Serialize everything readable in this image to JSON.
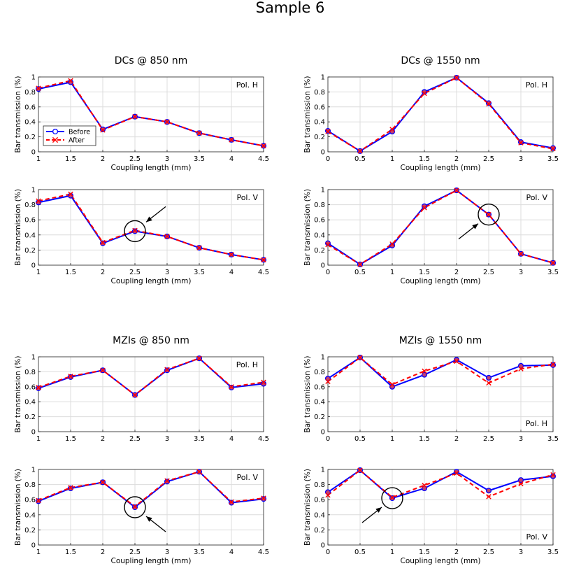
{
  "figure_title": "Sample 6",
  "legend": {
    "before": "Before",
    "after": "After"
  },
  "colors": {
    "before": "#0000ff",
    "after": "#ff0000",
    "marker_fill": "#c04070"
  },
  "chart_data": [
    {
      "type": "line",
      "title": "DCs @ 850 nm",
      "pol": "Pol. H",
      "pol_position": "top-right",
      "xlabel": "Coupling length (mm)",
      "ylabel": "Bar transmission (%)",
      "x": [
        1,
        1.5,
        2,
        2.5,
        3,
        3.5,
        4,
        4.5
      ],
      "xticks": [
        "1",
        "1.5",
        "2",
        "2.5",
        "3",
        "3.5",
        "4",
        "4.5"
      ],
      "yticks": [
        "0",
        "0.2",
        "0.4",
        "0.6",
        "0.8",
        "1"
      ],
      "xlim": [
        1,
        4.5
      ],
      "ylim": [
        0,
        1
      ],
      "legend": true,
      "legend_position": "middle-left",
      "series": [
        {
          "name": "Before",
          "values": [
            0.84,
            0.93,
            0.3,
            0.47,
            0.4,
            0.25,
            0.16,
            0.08
          ]
        },
        {
          "name": "After",
          "values": [
            0.85,
            0.95,
            0.29,
            0.47,
            0.4,
            0.25,
            0.16,
            0.08
          ]
        }
      ]
    },
    {
      "type": "line",
      "title": "DCs @ 1550 nm",
      "pol": "Pol. H",
      "pol_position": "top-right",
      "xlabel": "Coupling length (mm)",
      "ylabel": "Bar transmission (%)",
      "x": [
        0,
        0.5,
        1,
        1.5,
        2,
        2.5,
        3,
        3.5
      ],
      "xticks": [
        "0",
        "0.5",
        "1",
        "1.5",
        "2",
        "2.5",
        "3",
        "3.5"
      ],
      "yticks": [
        "0",
        "0.2",
        "0.4",
        "0.6",
        "0.8",
        "1"
      ],
      "xlim": [
        0,
        3.5
      ],
      "ylim": [
        0,
        1
      ],
      "series": [
        {
          "name": "Before",
          "values": [
            0.28,
            0.01,
            0.27,
            0.8,
            0.99,
            0.65,
            0.13,
            0.05
          ]
        },
        {
          "name": "After",
          "values": [
            0.27,
            0.01,
            0.3,
            0.78,
            0.99,
            0.64,
            0.12,
            0.04
          ]
        }
      ]
    },
    {
      "type": "line",
      "title": "",
      "pol": "Pol. V",
      "pol_position": "top-right",
      "xlabel": "Coupling length (mm)",
      "ylabel": "Bar transmission (%)",
      "x": [
        1,
        1.5,
        2,
        2.5,
        3,
        3.5,
        4,
        4.5
      ],
      "xticks": [
        "1",
        "1.5",
        "2",
        "2.5",
        "3",
        "3.5",
        "4",
        "4.5"
      ],
      "yticks": [
        "0",
        "0.2",
        "0.4",
        "0.6",
        "0.8",
        "1"
      ],
      "xlim": [
        1,
        4.5
      ],
      "ylim": [
        0,
        1
      ],
      "highlight_x": 2.5,
      "arrow_from": "top-right",
      "series": [
        {
          "name": "Before",
          "values": [
            0.83,
            0.92,
            0.29,
            0.45,
            0.38,
            0.23,
            0.14,
            0.07
          ]
        },
        {
          "name": "After",
          "values": [
            0.85,
            0.94,
            0.3,
            0.46,
            0.38,
            0.23,
            0.14,
            0.07
          ]
        }
      ]
    },
    {
      "type": "line",
      "title": "",
      "pol": "Pol. V",
      "pol_position": "top-right",
      "xlabel": "Coupling length (mm)",
      "ylabel": "Bar transmission (%)",
      "x": [
        0,
        0.5,
        1,
        1.5,
        2,
        2.5,
        3,
        3.5
      ],
      "xticks": [
        "0",
        "0.5",
        "1",
        "1.5",
        "2",
        "2.5",
        "3",
        "3.5"
      ],
      "yticks": [
        "0",
        "0.2",
        "0.4",
        "0.6",
        "0.8",
        "1"
      ],
      "xlim": [
        0,
        3.5
      ],
      "ylim": [
        0,
        1
      ],
      "highlight_x": 2.5,
      "arrow_from": "bottom-left",
      "series": [
        {
          "name": "Before",
          "values": [
            0.29,
            0.01,
            0.26,
            0.78,
            0.99,
            0.67,
            0.15,
            0.03
          ]
        },
        {
          "name": "After",
          "values": [
            0.27,
            0.01,
            0.28,
            0.76,
            0.99,
            0.67,
            0.15,
            0.03
          ]
        }
      ]
    },
    {
      "type": "line",
      "title": "MZIs @ 850 nm",
      "pol": "Pol. H",
      "pol_position": "top-right",
      "xlabel": "",
      "ylabel": "Bar transmission (%)",
      "x": [
        1,
        1.5,
        2,
        2.5,
        3,
        3.5,
        4,
        4.5
      ],
      "xticks": [
        "1",
        "1.5",
        "2",
        "2.5",
        "3",
        "3.5",
        "4",
        "4.5"
      ],
      "yticks": [
        "0",
        "0.2",
        "0.4",
        "0.6",
        "0.8",
        "1"
      ],
      "xlim": [
        1,
        4.5
      ],
      "ylim": [
        0,
        1
      ],
      "series": [
        {
          "name": "Before",
          "values": [
            0.58,
            0.73,
            0.82,
            0.49,
            0.82,
            0.98,
            0.59,
            0.64
          ]
        },
        {
          "name": "After",
          "values": [
            0.59,
            0.74,
            0.82,
            0.49,
            0.83,
            0.98,
            0.6,
            0.66
          ]
        }
      ]
    },
    {
      "type": "line",
      "title": "MZIs @ 1550 nm",
      "pol": "Pol. H",
      "pol_position": "bottom-right",
      "xlabel": "",
      "ylabel": "Bar transmission (%)",
      "x": [
        0,
        0.5,
        1,
        1.5,
        2,
        2.5,
        3,
        3.5
      ],
      "xticks": [
        "0",
        "0.5",
        "1",
        "1.5",
        "2",
        "2.5",
        "3",
        "3.5"
      ],
      "yticks": [
        "0",
        "0.2",
        "0.4",
        "0.6",
        "0.8",
        "1"
      ],
      "xlim": [
        0,
        3.5
      ],
      "ylim": [
        0,
        1
      ],
      "series": [
        {
          "name": "Before",
          "values": [
            0.71,
            0.99,
            0.6,
            0.76,
            0.96,
            0.72,
            0.88,
            0.89
          ]
        },
        {
          "name": "After",
          "values": [
            0.67,
            0.99,
            0.63,
            0.81,
            0.94,
            0.65,
            0.84,
            0.9
          ]
        }
      ]
    },
    {
      "type": "line",
      "title": "",
      "pol": "Pol. V",
      "pol_position": "top-right",
      "xlabel": "Coupling length (mm)",
      "ylabel": "Bar transmission (%)",
      "x": [
        1,
        1.5,
        2,
        2.5,
        3,
        3.5,
        4,
        4.5
      ],
      "xticks": [
        "1",
        "1.5",
        "2",
        "2.5",
        "3",
        "3.5",
        "4",
        "4.5"
      ],
      "yticks": [
        "0",
        "0.2",
        "0.4",
        "0.6",
        "0.8",
        "1"
      ],
      "xlim": [
        1,
        4.5
      ],
      "ylim": [
        0,
        1
      ],
      "highlight_x": 2.5,
      "arrow_from": "bottom-right",
      "series": [
        {
          "name": "Before",
          "values": [
            0.58,
            0.75,
            0.83,
            0.5,
            0.84,
            0.97,
            0.56,
            0.61
          ]
        },
        {
          "name": "After",
          "values": [
            0.59,
            0.76,
            0.83,
            0.51,
            0.85,
            0.97,
            0.57,
            0.62
          ]
        }
      ]
    },
    {
      "type": "line",
      "title": "",
      "pol": "Pol. V",
      "pol_position": "bottom-right",
      "xlabel": "Coupling length (mm)",
      "ylabel": "Bar transmission (%)",
      "x": [
        0,
        0.5,
        1,
        1.5,
        2,
        2.5,
        3,
        3.5
      ],
      "xticks": [
        "0",
        "0.5",
        "1",
        "1.5",
        "2",
        "2.5",
        "3",
        "3.5"
      ],
      "yticks": [
        "0",
        "0.2",
        "0.4",
        "0.6",
        "0.8",
        "1"
      ],
      "xlim": [
        0,
        3.5
      ],
      "ylim": [
        0,
        1
      ],
      "highlight_x": 1,
      "arrow_from": "bottom-left",
      "series": [
        {
          "name": "Before",
          "values": [
            0.7,
            0.99,
            0.62,
            0.75,
            0.97,
            0.72,
            0.86,
            0.91
          ]
        },
        {
          "name": "After",
          "values": [
            0.66,
            0.99,
            0.63,
            0.79,
            0.95,
            0.64,
            0.81,
            0.93
          ]
        }
      ]
    }
  ]
}
